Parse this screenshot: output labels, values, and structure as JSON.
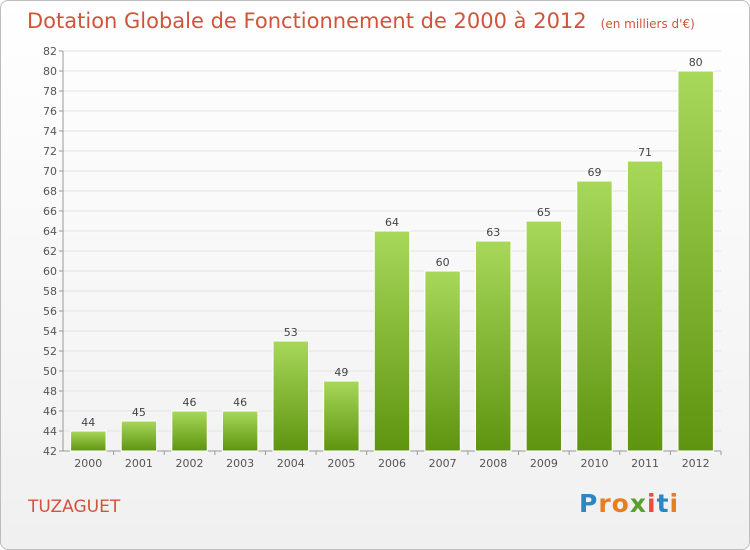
{
  "title": "Dotation Globale de Fonctionnement de 2000 à 2012",
  "subtitle": "(en milliers d'€)",
  "commune": "TUZAGUET",
  "logo": {
    "letters": [
      "P",
      "r",
      "o",
      "x",
      "i",
      "t",
      "i"
    ],
    "colors": [
      "#2e86c1",
      "#e67e22",
      "#e67e22",
      "#5aa02c",
      "#e74c3c",
      "#2e86c1",
      "#e67e22"
    ]
  },
  "colors": {
    "title": "#d2533b",
    "bar_light": "#a8d85a",
    "bar_dark": "#5e9410",
    "grid": "#e3e3e3"
  },
  "chart_data": {
    "type": "bar",
    "categories": [
      "2000",
      "2001",
      "2002",
      "2003",
      "2004",
      "2005",
      "2006",
      "2007",
      "2008",
      "2009",
      "2010",
      "2011",
      "2012"
    ],
    "values": [
      44,
      45,
      46,
      46,
      53,
      49,
      64,
      60,
      63,
      65,
      69,
      71,
      80
    ],
    "data_labels": [
      "44",
      "45",
      "46",
      "46",
      "53",
      "49",
      "64",
      "60",
      "63",
      "65",
      "69",
      "71",
      "80"
    ],
    "yticks": [
      "42",
      "44",
      "46",
      "48",
      "50",
      "52",
      "54",
      "56",
      "58",
      "60",
      "62",
      "64",
      "66",
      "68",
      "70",
      "72",
      "74",
      "76",
      "78",
      "80",
      "82"
    ],
    "ylim": [
      42,
      82
    ],
    "title": "Dotation Globale de Fonctionnement de 2000 à 2012",
    "subtitle": "(en milliers d'€)",
    "grid": true,
    "legend": "none"
  }
}
